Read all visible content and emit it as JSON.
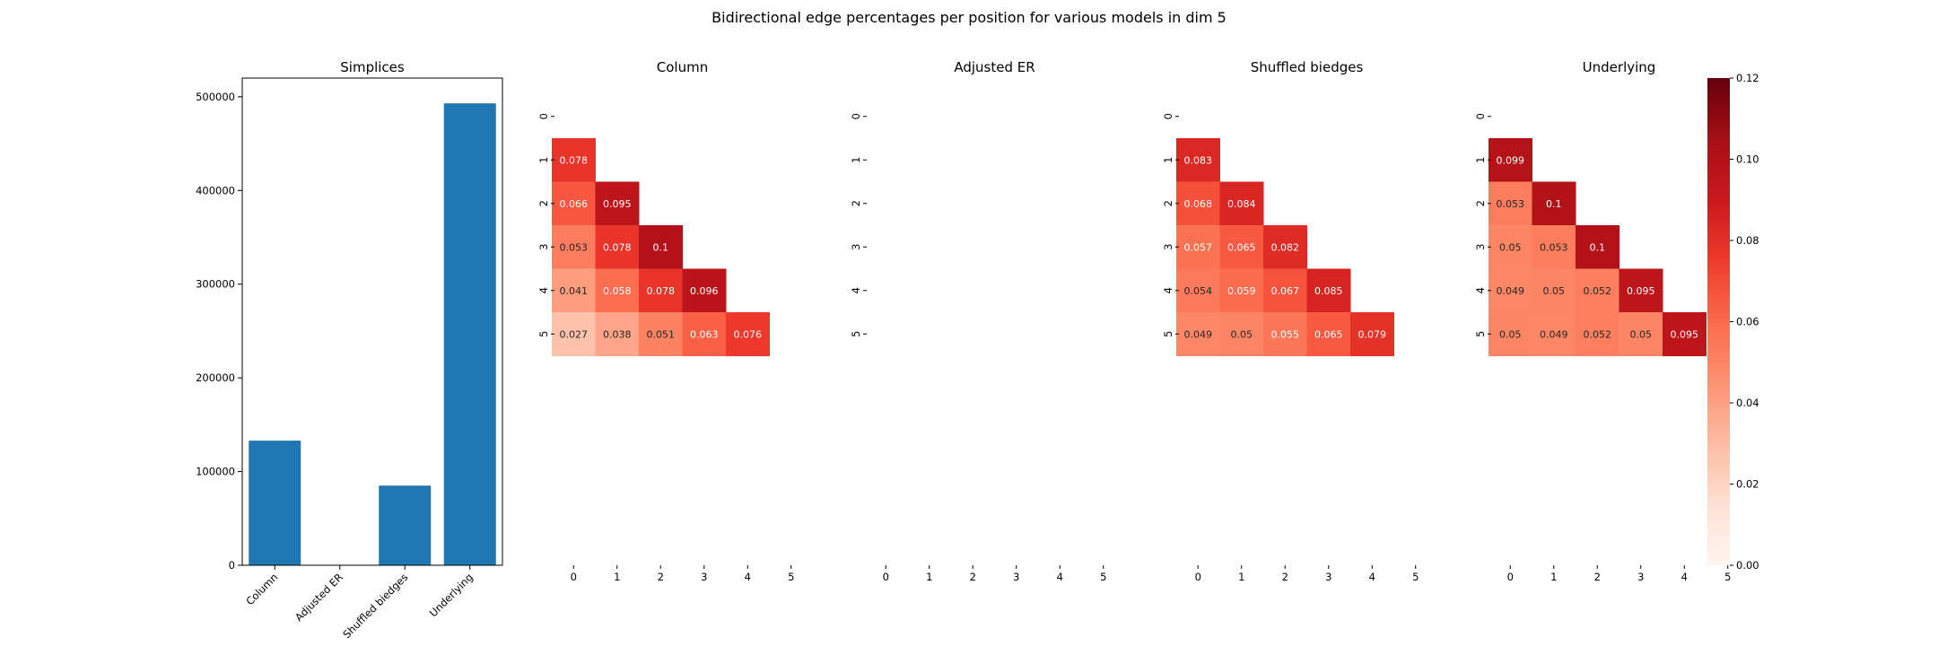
{
  "title": "Bidirectional edge percentages per position for various models in dim 5",
  "colors": {
    "bar": "#1f77b4",
    "cmap_low": "#fff5f0",
    "cmap_high": "#67000d"
  },
  "chart_data": [
    {
      "type": "bar",
      "title": "Simplices",
      "categories": [
        "Column",
        "Adjusted ER",
        "Shuffled biedges",
        "Underlying"
      ],
      "values": [
        133000,
        0,
        85000,
        493000
      ],
      "ylim": [
        0,
        520000
      ],
      "yticks": [
        0,
        100000,
        200000,
        300000,
        400000,
        500000
      ],
      "ytick_labels": [
        "0",
        "100000",
        "200000",
        "300000",
        "400000",
        "500000"
      ]
    },
    {
      "type": "heatmap",
      "title": "Column",
      "x_labels": [
        "0",
        "1",
        "2",
        "3",
        "4",
        "5"
      ],
      "y_labels": [
        "0",
        "1",
        "2",
        "3",
        "4",
        "5"
      ],
      "rows": [
        [],
        [
          0.078
        ],
        [
          0.066,
          0.095
        ],
        [
          0.053,
          0.078,
          0.1
        ],
        [
          0.041,
          0.058,
          0.078,
          0.096
        ],
        [
          0.027,
          0.038,
          0.051,
          0.063,
          0.076
        ]
      ],
      "vmin": 0,
      "vmax": 0.12
    },
    {
      "type": "heatmap",
      "title": "Adjusted ER",
      "x_labels": [
        "0",
        "1",
        "2",
        "3",
        "4",
        "5"
      ],
      "y_labels": [
        "0",
        "1",
        "2",
        "3",
        "4",
        "5"
      ],
      "rows": [
        [],
        [],
        [],
        [],
        [],
        []
      ],
      "vmin": 0,
      "vmax": 0.12
    },
    {
      "type": "heatmap",
      "title": "Shuffled biedges",
      "x_labels": [
        "0",
        "1",
        "2",
        "3",
        "4",
        "5"
      ],
      "y_labels": [
        "0",
        "1",
        "2",
        "3",
        "4",
        "5"
      ],
      "rows": [
        [],
        [
          0.083
        ],
        [
          0.068,
          0.084
        ],
        [
          0.057,
          0.065,
          0.082
        ],
        [
          0.054,
          0.059,
          0.067,
          0.085
        ],
        [
          0.049,
          0.05,
          0.055,
          0.065,
          0.079
        ]
      ],
      "vmin": 0,
      "vmax": 0.12
    },
    {
      "type": "heatmap",
      "title": "Underlying",
      "x_labels": [
        "0",
        "1",
        "2",
        "3",
        "4",
        "5"
      ],
      "y_labels": [
        "0",
        "1",
        "2",
        "3",
        "4",
        "5"
      ],
      "rows": [
        [],
        [
          0.099
        ],
        [
          0.053,
          0.1
        ],
        [
          0.05,
          0.053,
          0.1
        ],
        [
          0.049,
          0.05,
          0.052,
          0.095
        ],
        [
          0.05,
          0.049,
          0.052,
          0.05,
          0.095
        ]
      ],
      "vmin": 0,
      "vmax": 0.12
    }
  ],
  "colorbar": {
    "ticks": [
      0.0,
      0.02,
      0.04,
      0.06,
      0.08,
      0.1,
      0.12
    ],
    "tick_labels": [
      "0.00",
      "0.02",
      "0.04",
      "0.06",
      "0.08",
      "0.10",
      "0.12"
    ]
  }
}
